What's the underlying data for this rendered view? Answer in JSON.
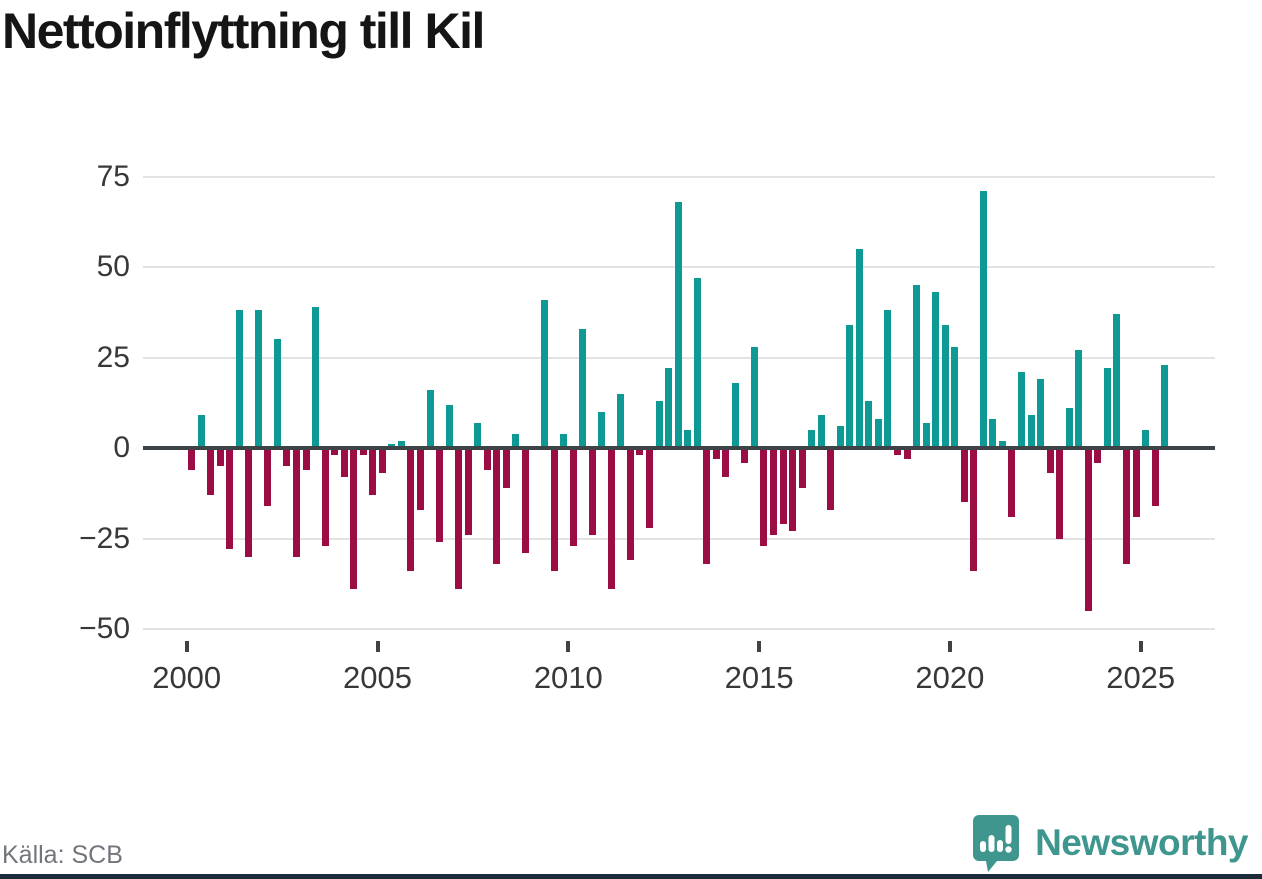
{
  "title": "Nettoinflyttning till Kil",
  "source": "Källa: SCB",
  "branding": {
    "logo_text": "Newsworthy",
    "logo_icon": "speech-bubble-bar-chart",
    "brand_color": "#3f968f"
  },
  "chart_data": {
    "type": "bar",
    "title": "Nettoinflyttning till Kil",
    "frequency": "quarterly",
    "start_year": 2000,
    "start_quarter": 1,
    "values": [
      -6,
      9,
      -13,
      -5,
      -28,
      38,
      -30,
      38,
      -16,
      30,
      -5,
      -30,
      -6,
      39,
      -27,
      -2,
      -8,
      -39,
      -2,
      -13,
      -7,
      1,
      2,
      -34,
      -17,
      16,
      -26,
      12,
      -39,
      -24,
      7,
      -6,
      -32,
      -11,
      4,
      -29,
      0,
      41,
      -34,
      4,
      -27,
      33,
      -24,
      10,
      -39,
      15,
      -31,
      -2,
      -22,
      13,
      22,
      68,
      5,
      47,
      -32,
      -3,
      -8,
      18,
      -4,
      28,
      -27,
      -24,
      -21,
      -23,
      -11,
      5,
      9,
      -17,
      6,
      34,
      55,
      13,
      8,
      38,
      -2,
      -3,
      45,
      7,
      43,
      34,
      28,
      -15,
      -34,
      71,
      8,
      2,
      -19,
      21,
      9,
      19,
      -7,
      -25,
      11,
      27,
      -45,
      -4,
      22,
      37,
      -32,
      -19,
      5,
      -16,
      23
    ],
    "y_ticks": [
      "75",
      "50",
      "25",
      "0",
      "−25",
      "−50"
    ],
    "y_tick_values": [
      75,
      50,
      25,
      0,
      -25,
      -50
    ],
    "x_tick_years": [
      2000,
      2005,
      2010,
      2015,
      2020,
      2025
    ],
    "ylim": [
      -57,
      82
    ],
    "grid": "horizontal",
    "legend": "none",
    "colors": {
      "positive": "#0d9a94",
      "negative": "#9c0d45",
      "zero_line": "#3d4347",
      "grid_line": "#e3e3e3",
      "tick_label": "#383838"
    }
  }
}
